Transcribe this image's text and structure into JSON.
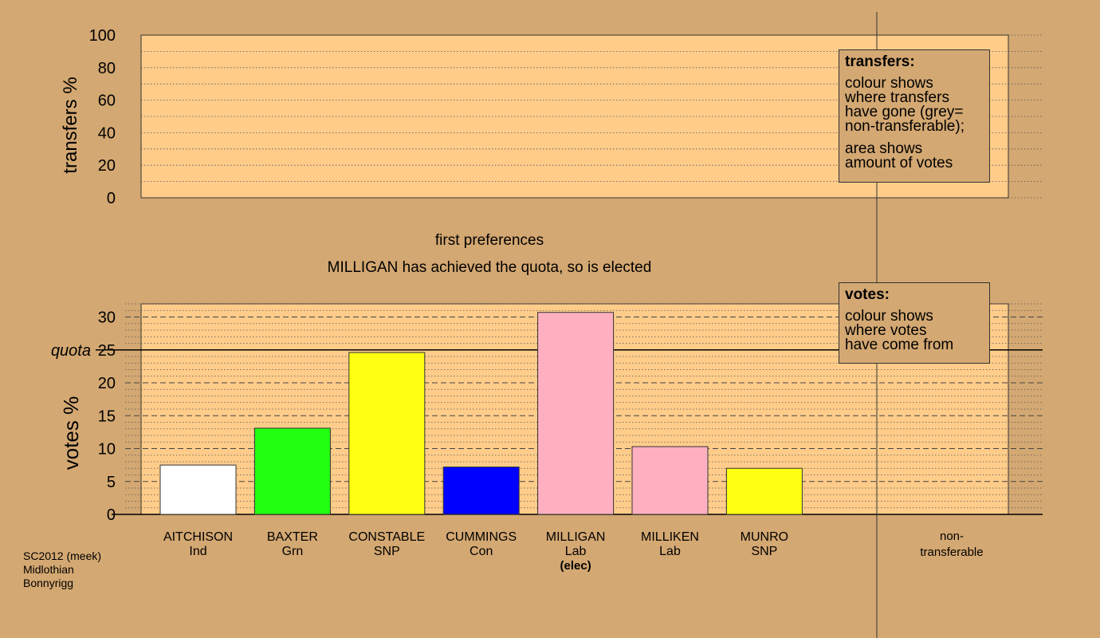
{
  "chart_data": [
    {
      "type": "bar",
      "panel": "transfers",
      "ylabel": "transfers %",
      "ylim": [
        0,
        100
      ],
      "yticks": [
        0,
        20,
        40,
        60,
        80,
        100
      ],
      "grid": true,
      "series": [],
      "legend": {
        "title": "transfers:",
        "lines": [
          "colour shows",
          "where transfers",
          "have gone (grey=",
          "non-transferable);"
        ],
        "lines2": [
          "area shows",
          "amount of votes"
        ]
      }
    },
    {
      "type": "bar",
      "panel": "votes",
      "ylabel": "votes %",
      "ylim": [
        0,
        32
      ],
      "yticks": [
        0,
        5,
        10,
        15,
        20,
        25,
        30
      ],
      "quota": 25,
      "quota_label": "quota",
      "grid": true,
      "categories": [
        "AITCHISON",
        "BAXTER",
        "CONSTABLE",
        "CUMMINGS",
        "MILLIGAN",
        "MILLIKEN",
        "MUNRO"
      ],
      "parties": [
        "Ind",
        "Grn",
        "SNP",
        "Con",
        "Lab",
        "Lab",
        "SNP"
      ],
      "notes": [
        "",
        "",
        "",
        "",
        "(elec)",
        "",
        ""
      ],
      "values": [
        7.5,
        13.1,
        24.6,
        7.2,
        30.7,
        10.3,
        7.0
      ],
      "colors": [
        "#ffffff",
        "#22ff11",
        "#ffff11",
        "#0000ff",
        "#ffb0c0",
        "#ffb0c0",
        "#ffff11"
      ],
      "extra_category": [
        "non-",
        "transferable"
      ],
      "legend": {
        "title": "votes:",
        "lines": [
          "colour shows",
          "where votes",
          "have come from"
        ]
      }
    }
  ],
  "stage_label": "first preferences",
  "status_text": "MILLIGAN has achieved the quota, so is elected",
  "footer": [
    "SC2012 (meek)",
    "Midlothian",
    "Bonnyrigg"
  ],
  "colors": {
    "background": "#d4a872",
    "plot_fill": "#ffcc8a"
  }
}
